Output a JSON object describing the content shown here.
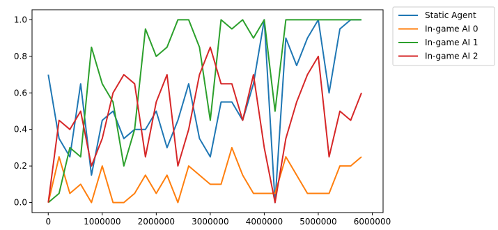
{
  "chart_data": {
    "type": "line",
    "x": [
      0,
      200000,
      400000,
      600000,
      800000,
      1000000,
      1200000,
      1400000,
      1600000,
      1800000,
      2000000,
      2200000,
      2400000,
      2600000,
      2800000,
      3000000,
      3200000,
      3400000,
      3600000,
      3800000,
      4000000,
      4200000,
      4400000,
      4600000,
      4800000,
      5000000,
      5200000,
      5400000,
      5600000,
      5800000
    ],
    "series": [
      {
        "name": "Static Agent",
        "color": "#1f77b4",
        "values": [
          0.7,
          0.35,
          0.25,
          0.65,
          0.15,
          0.45,
          0.5,
          0.35,
          0.4,
          0.4,
          0.5,
          0.3,
          0.45,
          0.65,
          0.35,
          0.25,
          0.55,
          0.55,
          0.45,
          0.65,
          1.0,
          0.0,
          0.9,
          0.75,
          0.9,
          1.0,
          0.6,
          0.95,
          1.0,
          1.0
        ]
      },
      {
        "name": "In-game AI 0",
        "color": "#ff7f0e",
        "values": [
          0.0,
          0.25,
          0.05,
          0.1,
          0.0,
          0.2,
          0.0,
          0.0,
          0.05,
          0.15,
          0.05,
          0.15,
          0.0,
          0.2,
          0.15,
          0.1,
          0.1,
          0.3,
          0.15,
          0.05,
          0.05,
          0.05,
          0.25,
          0.15,
          0.05,
          0.05,
          0.05,
          0.2,
          0.2,
          0.25
        ]
      },
      {
        "name": "In-game AI 1",
        "color": "#2ca02c",
        "values": [
          0.0,
          0.05,
          0.3,
          0.25,
          0.85,
          0.65,
          0.55,
          0.2,
          0.4,
          0.95,
          0.8,
          0.85,
          1.0,
          1.0,
          0.85,
          0.45,
          1.0,
          0.95,
          1.0,
          0.9,
          1.0,
          0.5,
          1.0,
          1.0,
          1.0,
          1.0,
          1.0,
          1.0,
          1.0,
          1.0
        ]
      },
      {
        "name": "In-game AI 2",
        "color": "#d62728",
        "values": [
          0.0,
          0.45,
          0.4,
          0.5,
          0.2,
          0.35,
          0.6,
          0.7,
          0.65,
          0.25,
          0.55,
          0.7,
          0.2,
          0.4,
          0.7,
          0.85,
          0.65,
          0.65,
          0.45,
          0.7,
          0.3,
          0.0,
          0.35,
          0.55,
          0.7,
          0.8,
          0.25,
          0.5,
          0.45,
          0.6
        ]
      }
    ],
    "xlim": [
      -300000,
      6200000
    ],
    "ylim": [
      -0.055,
      1.055
    ],
    "xticks": [
      0,
      1000000,
      2000000,
      3000000,
      4000000,
      5000000,
      6000000
    ],
    "xtick_labels": [
      "0",
      "1000000",
      "2000000",
      "3000000",
      "4000000",
      "5000000",
      "6000000"
    ],
    "yticks": [
      0.0,
      0.2,
      0.4,
      0.6,
      0.8,
      1.0
    ],
    "ytick_labels": [
      "0.0",
      "0.2",
      "0.4",
      "0.6",
      "0.8",
      "1.0"
    ],
    "title": "",
    "xlabel": "",
    "ylabel": "",
    "grid": false,
    "legend_position": "outside-upper-right"
  }
}
